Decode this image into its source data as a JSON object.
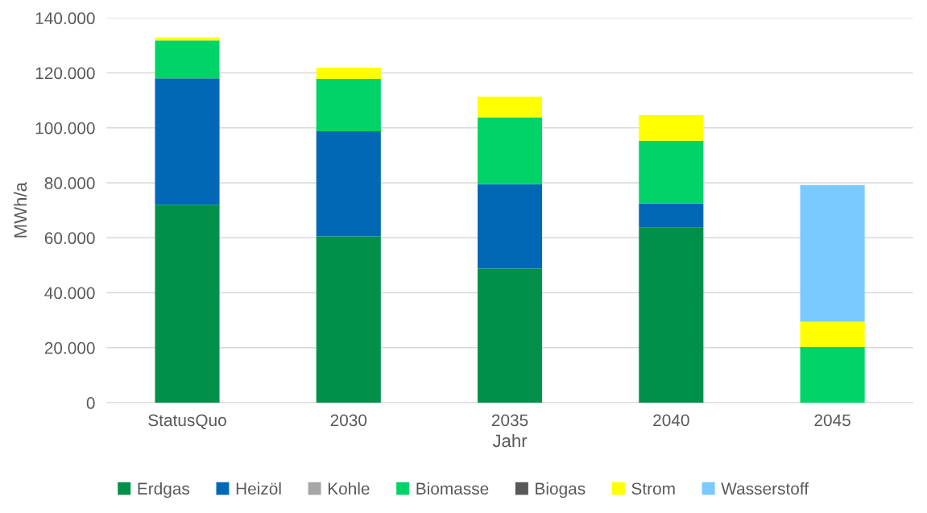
{
  "chart_data": {
    "type": "bar",
    "stacked": true,
    "xlabel": "Jahr",
    "ylabel": "MWh/a",
    "categories": [
      "StatusQuo",
      "2030",
      "2035",
      "2040",
      "2045"
    ],
    "series": [
      {
        "name": "Erdgas",
        "color": "#00904a",
        "values": [
          72000,
          60500,
          48800,
          63700,
          0
        ]
      },
      {
        "name": "Heizöl",
        "color": "#0068b5",
        "values": [
          46000,
          38300,
          30700,
          8800,
          0
        ]
      },
      {
        "name": "Kohle",
        "color": "#a6a6a6",
        "values": [
          0,
          0,
          0,
          0,
          0
        ]
      },
      {
        "name": "Biomasse",
        "color": "#00d468",
        "values": [
          13800,
          19000,
          24300,
          22800,
          20200
        ]
      },
      {
        "name": "Biogas",
        "color": "#595959",
        "values": [
          0,
          0,
          0,
          0,
          0
        ]
      },
      {
        "name": "Strom",
        "color": "#ffff00",
        "values": [
          1100,
          4100,
          7600,
          9300,
          9300
        ]
      },
      {
        "name": "Wasserstoff",
        "color": "#7ac9ff",
        "values": [
          0,
          0,
          0,
          0,
          49700
        ]
      }
    ],
    "ylim": [
      0,
      140000
    ],
    "yticks": [
      {
        "value": 0,
        "label": "0"
      },
      {
        "value": 20000,
        "label": "20.000"
      },
      {
        "value": 40000,
        "label": "40.000"
      },
      {
        "value": 60000,
        "label": "60.000"
      },
      {
        "value": 80000,
        "label": "80.000"
      },
      {
        "value": 100000,
        "label": "100.000"
      },
      {
        "value": 120000,
        "label": "120.000"
      },
      {
        "value": 140000,
        "label": "140.000"
      }
    ],
    "grid": "y",
    "legend": "bottom"
  }
}
